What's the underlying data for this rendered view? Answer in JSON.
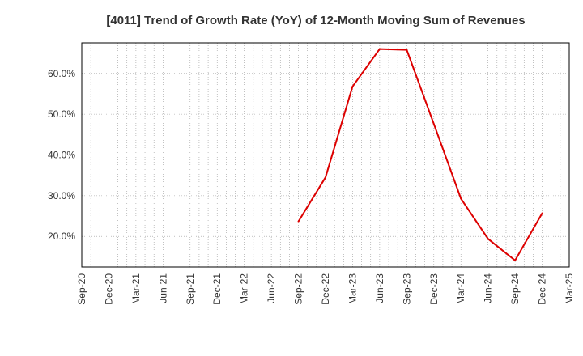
{
  "chart_data": {
    "type": "line",
    "title": "[4011]  Trend of Growth Rate (YoY) of 12-Month Moving Sum of Revenues",
    "xlabel": "",
    "ylabel": "",
    "x_tick_labels": [
      "Sep-20",
      "Dec-20",
      "Mar-21",
      "Jun-21",
      "Sep-21",
      "Dec-21",
      "Mar-22",
      "Jun-22",
      "Sep-22",
      "Dec-22",
      "Mar-23",
      "Jun-23",
      "Sep-23",
      "Dec-23",
      "Mar-24",
      "Jun-24",
      "Sep-24",
      "Dec-24",
      "Mar-25"
    ],
    "y_ticks": [
      20,
      30,
      40,
      50,
      60
    ],
    "y_tick_labels": [
      "20.0%",
      "30.0%",
      "40.0%",
      "50.0%",
      "60.0%"
    ],
    "ylim": [
      12.5,
      67.5
    ],
    "grid": true,
    "series": [
      {
        "color": "#dd0000",
        "points": [
          {
            "x": "Sep-22",
            "y": 23.7
          },
          {
            "x": "Dec-22",
            "y": 34.5
          },
          {
            "x": "Mar-23",
            "y": 56.8
          },
          {
            "x": "Jun-23",
            "y": 66.0
          },
          {
            "x": "Sep-23",
            "y": 65.8
          },
          {
            "x": "Dec-23",
            "y": 47.6
          },
          {
            "x": "Mar-24",
            "y": 29.3
          },
          {
            "x": "Jun-24",
            "y": 19.4
          },
          {
            "x": "Sep-24",
            "y": 14.1
          },
          {
            "x": "Dec-24",
            "y": 25.7
          }
        ]
      }
    ]
  }
}
